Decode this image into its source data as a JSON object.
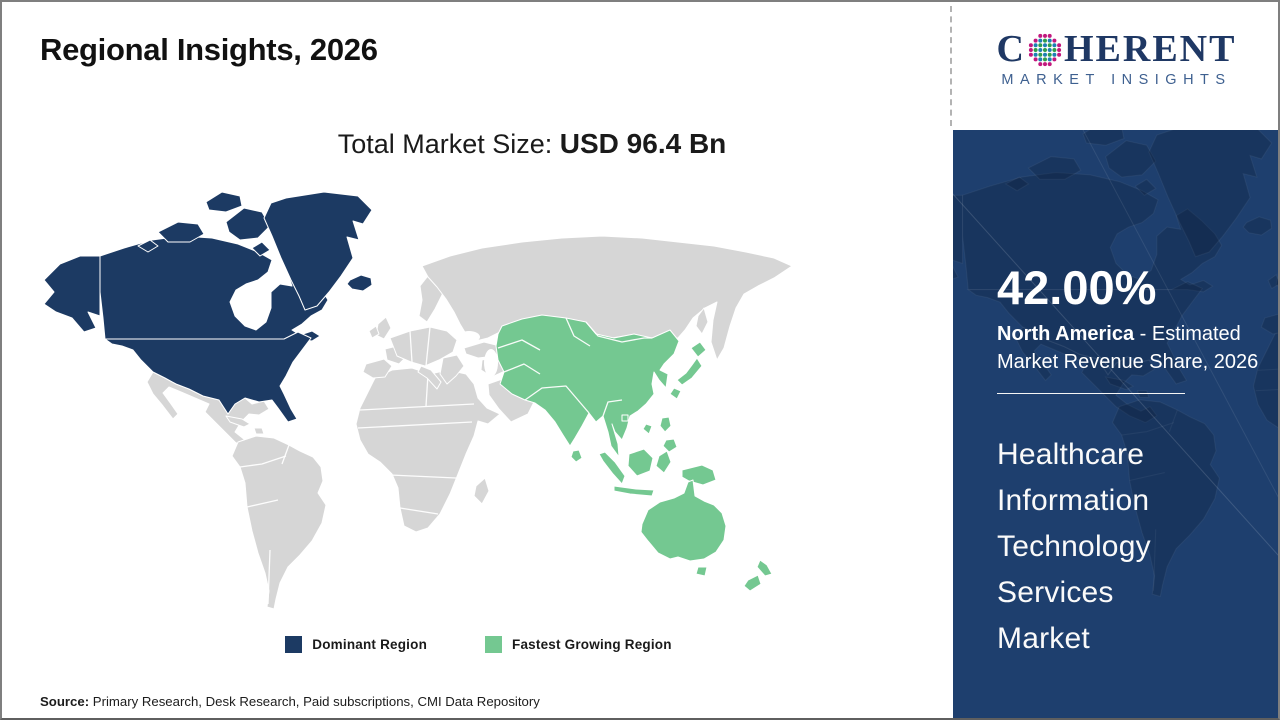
{
  "header": {
    "title": "Regional Insights, 2026"
  },
  "subtitle": {
    "label": "Total Market Size: ",
    "value": "USD 96.4 Bn"
  },
  "logo": {
    "part1": "C",
    "part2": "HERENT",
    "tagline": "MARKET INSIGHTS"
  },
  "legend": [
    {
      "label": "Dominant Region",
      "color_key": "dominant"
    },
    {
      "label": "Fastest Growing Region",
      "color_key": "fastest"
    }
  ],
  "sidebar": {
    "share_value": "42.00%",
    "share_region": "North America",
    "share_rest": " - Estimated Market Revenue Share, 2026",
    "market_lines": [
      "Healthcare",
      "Information",
      "Technology",
      "Services",
      "Market"
    ]
  },
  "source": {
    "label": "Source:",
    "text": " Primary Research, Desk Research, Paid subscriptions, CMI Data Repository"
  },
  "colors": {
    "dominant": "#1C3A63",
    "fastest": "#74C891",
    "other": "#D6D6D6",
    "panel": "#1E3F6E",
    "logo_navy": "#1F3864",
    "logo_tagline": "#3E6090",
    "logo_dots": [
      "#2F9E49",
      "#1B7FB4",
      "#C2187E"
    ]
  }
}
